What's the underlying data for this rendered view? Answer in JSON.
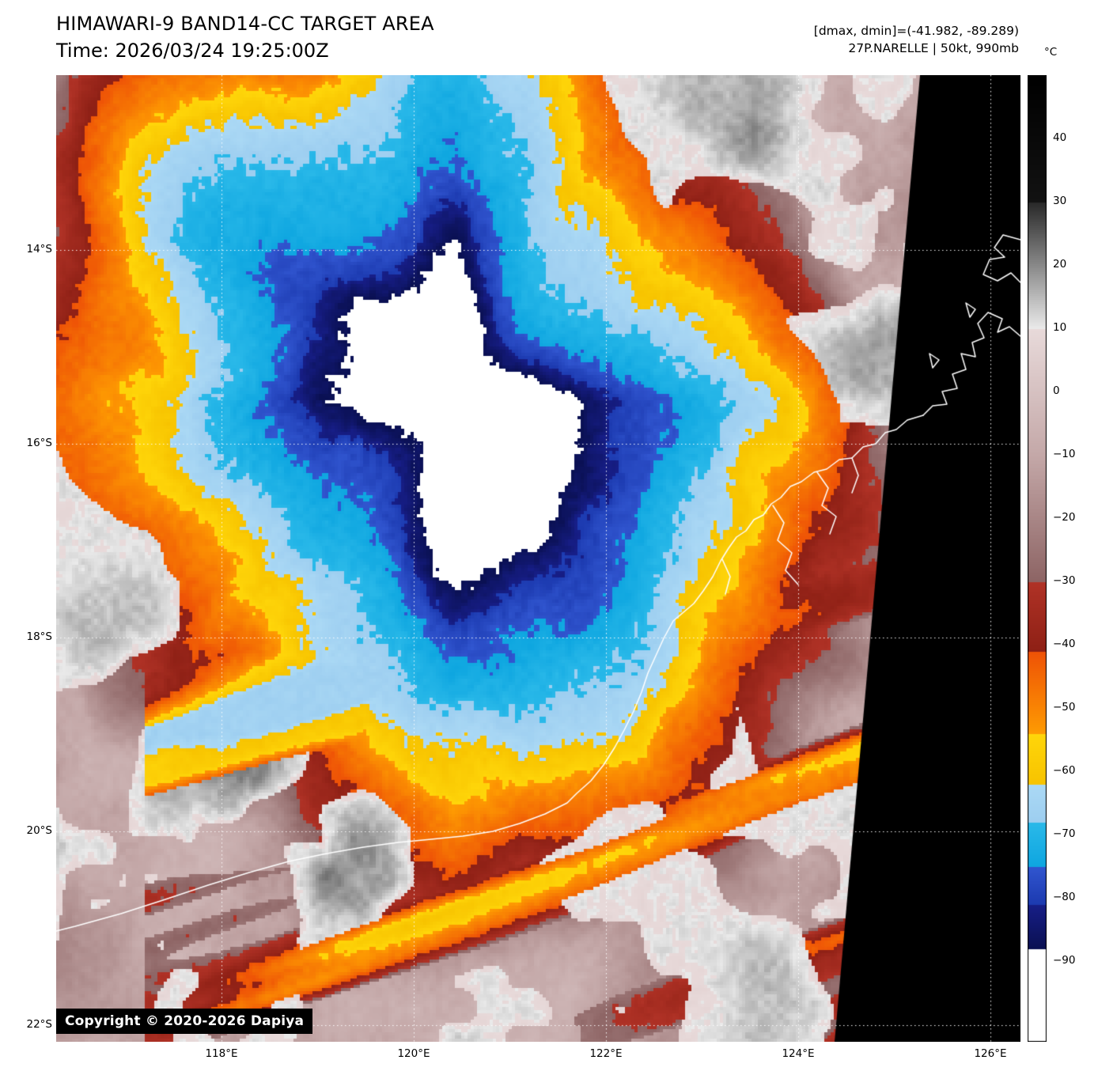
{
  "header": {
    "title": "HIMAWARI-9 BAND14-CC TARGET AREA",
    "time": "Time: 2026/03/24 19:25:00Z",
    "dmax_dmin": "[dmax, dmin]=(-41.982, -89.289)",
    "storm_info": "27P.NARELLE | 50kt, 990mb"
  },
  "map": {
    "copyright": "Copyright © 2020-2026 Dapiya",
    "lat_ticks": [
      {
        "label": "14°S",
        "lat": 14
      },
      {
        "label": "16°S",
        "lat": 16
      },
      {
        "label": "18°S",
        "lat": 18
      },
      {
        "label": "20°S",
        "lat": 20
      },
      {
        "label": "22°S",
        "lat": 22
      }
    ],
    "lon_ticks": [
      {
        "label": "118°E",
        "lon": 118
      },
      {
        "label": "120°E",
        "lon": 120
      },
      {
        "label": "122°E",
        "lon": 122
      },
      {
        "label": "124°E",
        "lon": 124
      },
      {
        "label": "126°E",
        "lon": 126
      }
    ]
  },
  "colorbar": {
    "unit": "°C",
    "ticks": [
      {
        "label": "40",
        "value": 40
      },
      {
        "label": "30",
        "value": 30
      },
      {
        "label": "20",
        "value": 20
      },
      {
        "label": "10",
        "value": 10
      },
      {
        "label": "0",
        "value": 0
      },
      {
        "label": "−10",
        "value": -10
      },
      {
        "label": "−20",
        "value": -20
      },
      {
        "label": "−30",
        "value": -30
      },
      {
        "label": "−40",
        "value": -40
      },
      {
        "label": "−50",
        "value": -50
      },
      {
        "label": "−60",
        "value": -60
      },
      {
        "label": "−70",
        "value": -70
      },
      {
        "label": "−80",
        "value": -80
      },
      {
        "label": "−90",
        "value": -90
      }
    ],
    "segments": [
      {
        "from": 50,
        "to": 30,
        "c0": "#000000",
        "c1": "#121212"
      },
      {
        "from": 30,
        "to": 10,
        "c0": "#282828",
        "c1": "#eaeaea"
      },
      {
        "from": 10,
        "to": -10,
        "c0": "#e8dada",
        "c1": "#c4a8a8"
      },
      {
        "from": -10,
        "to": -30,
        "c0": "#c4a8a8",
        "c1": "#8d6464"
      },
      {
        "from": -30,
        "to": -41,
        "c0": "#b03226",
        "c1": "#8e2015"
      },
      {
        "from": -41,
        "to": -54,
        "c0": "#ee5206",
        "c1": "#fe9b02"
      },
      {
        "from": -54,
        "to": -62,
        "c0": "#ffd60a",
        "c1": "#f7c300"
      },
      {
        "from": -62,
        "to": -68,
        "c0": "#abd9f5",
        "c1": "#9dcef0"
      },
      {
        "from": -68,
        "to": -75,
        "c0": "#2ab9e9",
        "c1": "#0ea6e0"
      },
      {
        "from": -75,
        "to": -81,
        "c0": "#3156d0",
        "c1": "#1c3ab0"
      },
      {
        "from": -81,
        "to": -88,
        "c0": "#171e88",
        "c1": "#0a1052"
      },
      {
        "from": -88,
        "to": -103,
        "c0": "#ffffff",
        "c1": "#ffffff"
      }
    ]
  }
}
